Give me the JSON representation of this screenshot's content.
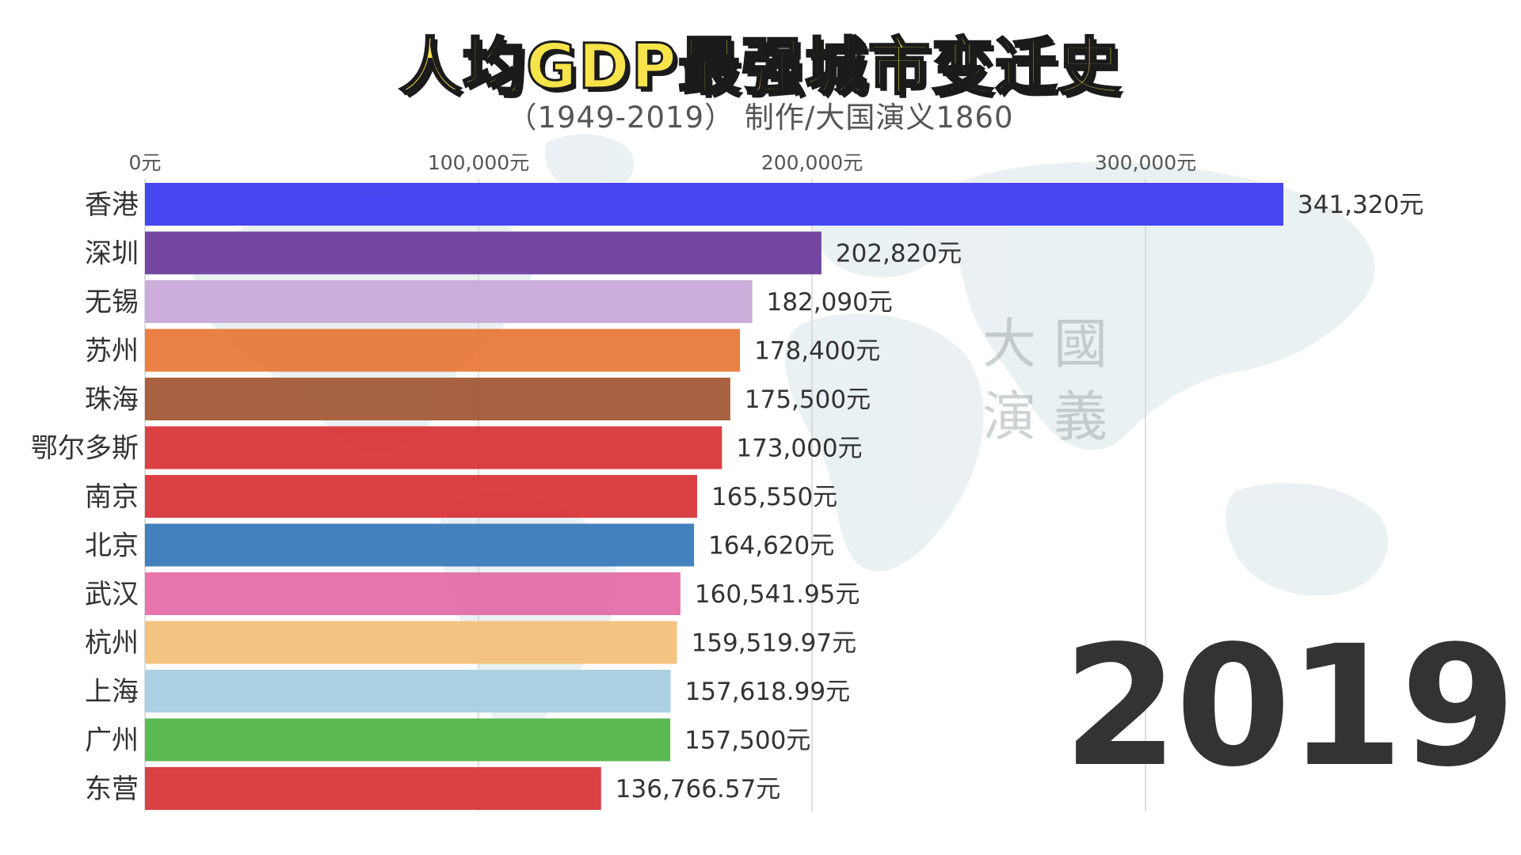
{
  "header": {
    "title": "人均GDP最强城市变迁史",
    "subtitle": "（1949-2019） 制作/大国演义1860"
  },
  "watermark_text": "大國演義",
  "year_label": "2019",
  "chart_data": {
    "type": "bar",
    "orientation": "horizontal",
    "title": "人均GDP最强城市变迁史",
    "subtitle": "（1949-2019） 制作/大国演义1860",
    "xlim": [
      0,
      341320
    ],
    "ticks": [
      0,
      100000,
      200000,
      300000
    ],
    "tick_labels": [
      "0元",
      "100,000元",
      "200,000元",
      "300,000元"
    ],
    "grid": true,
    "categories": [
      "香港",
      "深圳",
      "无锡",
      "苏州",
      "珠海",
      "鄂尔多斯",
      "南京",
      "北京",
      "武汉",
      "杭州",
      "上海",
      "广州",
      "东营"
    ],
    "values": [
      341320,
      202820,
      182090,
      178400,
      175500,
      173000,
      165550,
      164620,
      160541.95,
      159519.97,
      157618.99,
      157500,
      136766.57
    ],
    "value_labels": [
      "341,320元",
      "202,820元",
      "182,090元",
      "178,400元",
      "175,500元",
      "173,000元",
      "165,550元",
      "164,620元",
      "160,541.95元",
      "159,519.97元",
      "157,618.99元",
      "157,500元",
      "136,766.57元"
    ],
    "colors": [
      "#3c3cf0",
      "#6b3c9c",
      "#c9a9d8",
      "#e8793a",
      "#a35a37",
      "#d8363a",
      "#d8363a",
      "#3a7ab8",
      "#e46ea6",
      "#f2c07a",
      "#a8cfe2",
      "#52b44a",
      "#d8363a"
    ]
  }
}
